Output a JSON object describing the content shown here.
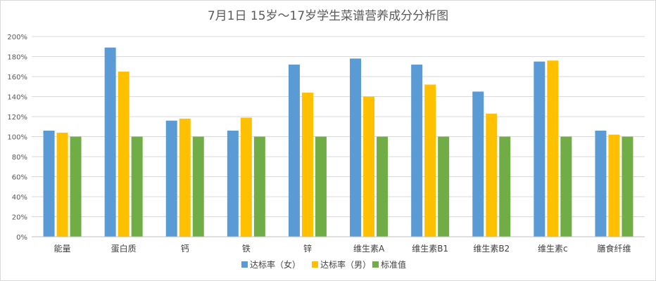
{
  "chart_data": {
    "type": "bar",
    "title": "7月1日 15岁～17岁学生菜谱营养成分分析图",
    "xlabel": "",
    "ylabel": "",
    "ylim": [
      0,
      200
    ],
    "y_ticks": [
      "0%",
      "20%",
      "40%",
      "60%",
      "80%",
      "100%",
      "120%",
      "140%",
      "160%",
      "180%",
      "200%"
    ],
    "grid": true,
    "legend_position": "bottom",
    "categories": [
      "能量",
      "蛋白质",
      "钙",
      "铁",
      "锌",
      "维生素A",
      "维生素B1",
      "维生素B2",
      "维生素c",
      "膳食纤维"
    ],
    "series": [
      {
        "name": "达标率（女）",
        "color": "#5b9bd5",
        "values": [
          106,
          189,
          116,
          106,
          172,
          178,
          172,
          145,
          175,
          106
        ]
      },
      {
        "name": "达标率（男）",
        "color": "#ffc000",
        "values": [
          104,
          165,
          118,
          119,
          144,
          140,
          152,
          123,
          176,
          102
        ]
      },
      {
        "name": "标准值",
        "color": "#70ad47",
        "values": [
          100,
          100,
          100,
          100,
          100,
          100,
          100,
          100,
          100,
          100
        ]
      }
    ]
  }
}
